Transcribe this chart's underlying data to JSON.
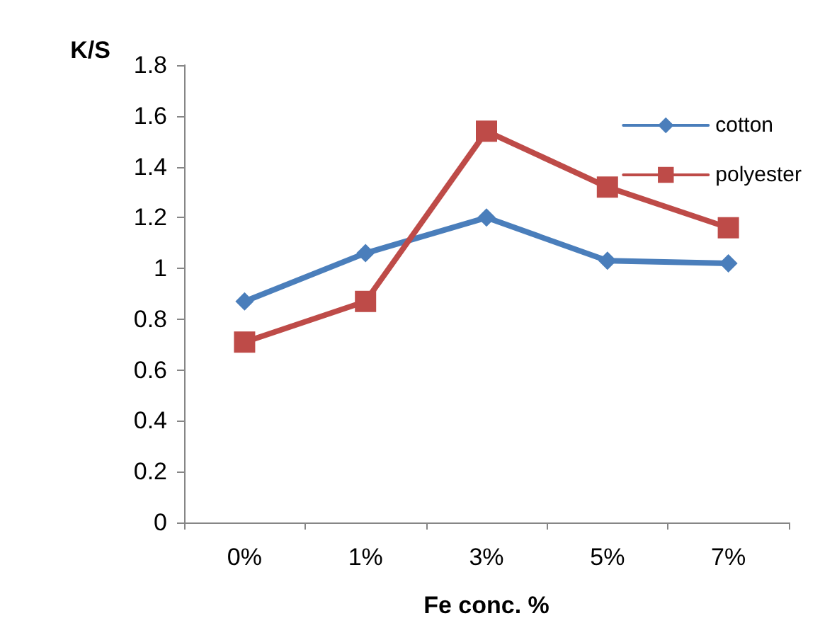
{
  "chart_data": {
    "type": "line",
    "xlabel": "Fe conc. %",
    "ylabel": "K/S",
    "categories": [
      "0%",
      "1%",
      "3%",
      "5%",
      "7%"
    ],
    "series": [
      {
        "name": "cotton",
        "color": "#4a7ebb",
        "marker": "diamond",
        "values": [
          0.87,
          1.06,
          1.2,
          1.03,
          1.02
        ]
      },
      {
        "name": "polyester",
        "color": "#be4b48",
        "marker": "square",
        "values": [
          0.71,
          0.87,
          1.54,
          1.32,
          1.16
        ]
      }
    ],
    "ylim": [
      0,
      1.8
    ],
    "yticks": [
      0,
      0.2,
      0.4,
      0.6,
      0.8,
      1,
      1.2,
      1.4,
      1.6,
      1.8
    ],
    "grid": false,
    "legend": "top right",
    "line_style": "solid"
  }
}
